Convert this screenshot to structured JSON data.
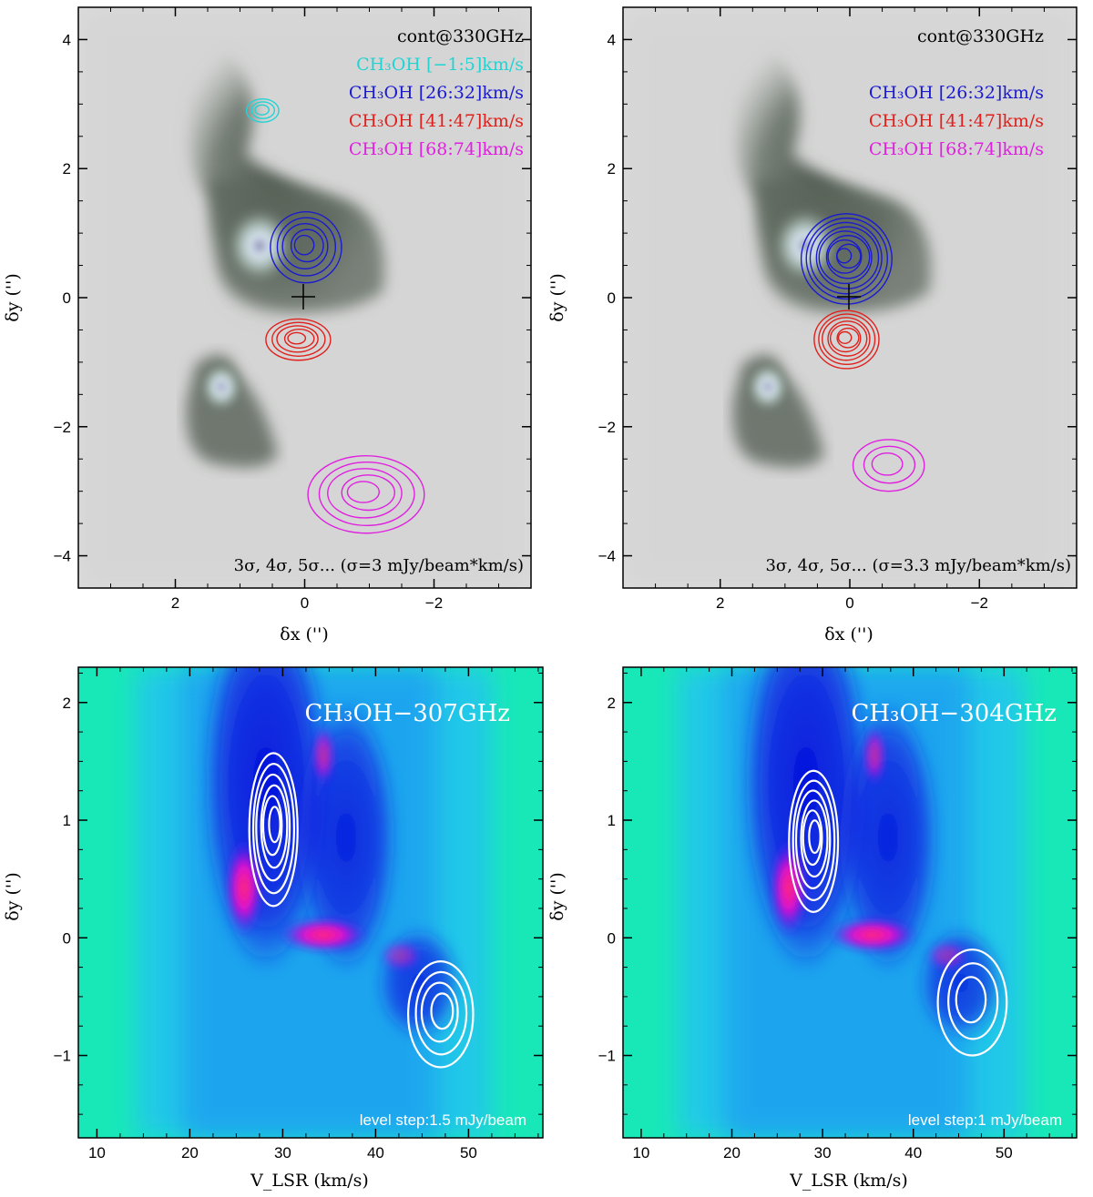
{
  "chart_data": [
    {
      "type": "contour",
      "panel": "top-left",
      "background": "cont@330GHz",
      "xlabel": "δx ('')",
      "ylabel": "δy ('')",
      "xlim": [
        3.5,
        -3.5
      ],
      "ylim": [
        -4.5,
        4.5
      ],
      "x_ticks": [
        2,
        0,
        -2
      ],
      "x_tick_labels": [
        "2",
        "0",
        "−2"
      ],
      "y_ticks": [
        4,
        2,
        0,
        -2,
        -4
      ],
      "y_tick_labels": [
        "4",
        "2",
        "0",
        "−2",
        "−4"
      ],
      "legend": [
        {
          "text": "cont@330GHz",
          "color": "#000000"
        },
        {
          "text": "CH₃OH [−1:5]km/s",
          "color": "#22d3d3"
        },
        {
          "text": "CH₃OH [26:32]km/s",
          "color": "#1a1ad0"
        },
        {
          "text": "CH₃OH [41:47]km/s",
          "color": "#e0201c"
        },
        {
          "text": "CH₃OH [68:74]km/s",
          "color": "#e020e0"
        }
      ],
      "note": "3σ, 4σ, 5σ... (σ=3 mJy/beam*km/s)",
      "cross": [
        0,
        0
      ],
      "series": [
        {
          "name": "CH₃OH [26:32]km/s",
          "color": "#1a1ad0",
          "center": [
            -0.02,
            0.78
          ],
          "radius": [
            0.55,
            0.55
          ],
          "levels": 5
        },
        {
          "name": "CH₃OH [41:47]km/s",
          "color": "#e0201c",
          "center": [
            0.1,
            -0.65
          ],
          "radius": [
            0.5,
            0.32
          ],
          "levels": 5
        },
        {
          "name": "CH₃OH [68:74]km/s",
          "color": "#e020e0",
          "center": [
            -0.95,
            -3.05
          ],
          "radius": [
            0.9,
            0.6
          ],
          "levels": 5
        },
        {
          "name": "CH₃OH [−1:5]km/s",
          "color": "#22d3d3",
          "center": [
            0.65,
            2.9
          ],
          "radius": [
            0.25,
            0.18
          ],
          "levels": 3
        }
      ]
    },
    {
      "type": "contour",
      "panel": "top-right",
      "background": "cont@330GHz",
      "xlabel": "δx ('')",
      "ylabel": "δy ('')",
      "xlim": [
        3.5,
        -3.5
      ],
      "ylim": [
        -4.5,
        4.5
      ],
      "x_ticks": [
        2,
        0,
        -2
      ],
      "x_tick_labels": [
        "2",
        "0",
        "−2"
      ],
      "y_ticks": [
        4,
        2,
        0,
        -2,
        -4
      ],
      "y_tick_labels": [
        "4",
        "2",
        "0",
        "−2",
        "−4"
      ],
      "legend": [
        {
          "text": "cont@330GHz",
          "color": "#000000"
        },
        {
          "text": "CH₃OH [26:32]km/s",
          "color": "#1a1ad0"
        },
        {
          "text": "CH₃OH [41:47]km/s",
          "color": "#e0201c"
        },
        {
          "text": "CH₃OH [68:74]km/s",
          "color": "#e020e0"
        }
      ],
      "note": "3σ, 4σ, 5σ... (σ=3.3 mJy/beam*km/s)",
      "cross": [
        0,
        0
      ],
      "series": [
        {
          "name": "CH₃OH [26:32]km/s",
          "color": "#1a1ad0",
          "center": [
            0.05,
            0.6
          ],
          "radius": [
            0.7,
            0.7
          ],
          "levels": 9
        },
        {
          "name": "CH₃OH [41:47]km/s",
          "color": "#e0201c",
          "center": [
            0.05,
            -0.65
          ],
          "radius": [
            0.5,
            0.45
          ],
          "levels": 7
        },
        {
          "name": "CH₃OH [68:74]km/s",
          "color": "#e020e0",
          "center": [
            -0.6,
            -2.6
          ],
          "radius": [
            0.55,
            0.4
          ],
          "levels": 3
        }
      ]
    },
    {
      "type": "heatmap",
      "panel": "bottom-left",
      "title": "CH₃OH−307GHz",
      "xlabel": "V_LSR (km/s)",
      "ylabel": "δy ('')",
      "xlim": [
        8,
        58
      ],
      "ylim": [
        -1.7,
        2.3
      ],
      "x_ticks": [
        10,
        20,
        30,
        40,
        50
      ],
      "x_tick_labels": [
        "10",
        "20",
        "30",
        "40",
        "50"
      ],
      "y_ticks": [
        2,
        1,
        0,
        -1
      ],
      "y_tick_labels": [
        "2",
        "1",
        "0",
        "−1"
      ],
      "note": "level step:1.5 mJy/beam",
      "contours": [
        {
          "center": [
            29.0,
            0.92
          ],
          "radius": [
            2.6,
            0.65
          ],
          "levels": 6
        },
        {
          "center": [
            47.0,
            -0.65
          ],
          "radius": [
            3.5,
            0.45
          ],
          "levels": 4
        }
      ]
    },
    {
      "type": "heatmap",
      "panel": "bottom-right",
      "title": "CH₃OH−304GHz",
      "xlabel": "V_LSR (km/s)",
      "ylabel": "δy ('')",
      "xlim": [
        8,
        58
      ],
      "ylim": [
        -1.7,
        2.3
      ],
      "x_ticks": [
        10,
        20,
        30,
        40,
        50
      ],
      "x_tick_labels": [
        "10",
        "20",
        "30",
        "40",
        "50"
      ],
      "y_ticks": [
        2,
        1,
        0,
        -1
      ],
      "y_tick_labels": [
        "2",
        "1",
        "0",
        "−1"
      ],
      "note": "level step:1 mJy/beam",
      "contours": [
        {
          "center": [
            29.0,
            0.82
          ],
          "radius": [
            2.7,
            0.6
          ],
          "levels": 6
        },
        {
          "center": [
            46.5,
            -0.55
          ],
          "radius": [
            3.8,
            0.45
          ],
          "levels": 3
        }
      ]
    }
  ]
}
